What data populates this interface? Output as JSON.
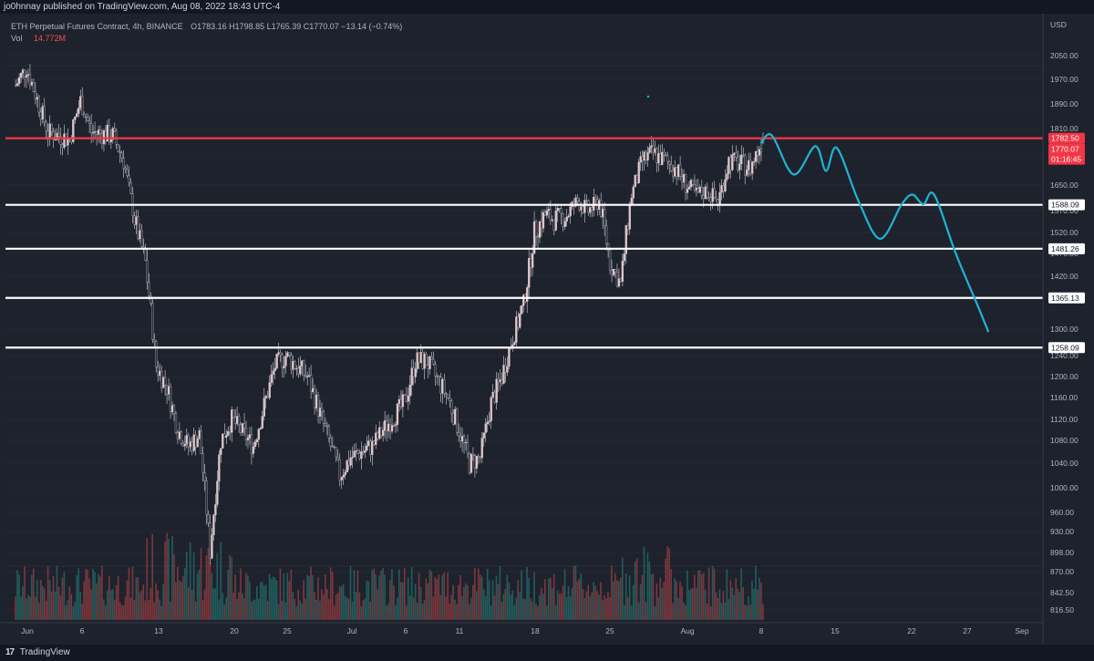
{
  "header": {
    "publisher_line": "jo0hnnay published on TradingView.com, Aug 08, 2022 18:43 UTC-4"
  },
  "legend": {
    "symbol": "ETH Perpetual Futures Contract, 4h, BINANCE",
    "ohlc": "O1783.16 H1798.85 L1765.39 C1770.07 −13.14 (−0.74%)",
    "vol_label": "Vol",
    "vol_value": "14.772M"
  },
  "footer": {
    "brand": "TradingView"
  },
  "colors": {
    "background": "#1e222d",
    "grid": "#2a2e39",
    "up_candle": "#e8c4c4",
    "down_candle": "#2a2e39",
    "wick": "#d1d4dc",
    "vol_up": "#26a69a",
    "vol_down": "#ef5350",
    "resistance_line": "#f23645",
    "support_lines": "#ffffff",
    "projection": "#1fb4d2"
  },
  "chart_data": {
    "type": "candlestick",
    "symbol": "ETH Perpetual Futures Contract",
    "interval": "4h",
    "exchange": "BINANCE",
    "y_axis_unit": "USD",
    "y_ticks": [
      2050,
      1970,
      1890,
      1810,
      1730,
      1650,
      1570,
      1520,
      1470,
      1420,
      1360,
      1300,
      1240,
      1200,
      1160,
      1120,
      1080,
      1040,
      1000,
      960,
      930,
      898,
      870,
      842.5,
      816.5
    ],
    "y_tick_labels": [
      "2050.00",
      "1970.00",
      "1890.00",
      "1810.00",
      "1730.00",
      "1650.00",
      "1570.00",
      "1520.00",
      "1470.00",
      "1420.00",
      "1360.00",
      "1300.00",
      "1240.00",
      "1200.00",
      "1160.00",
      "1120.00",
      "1080.00",
      "1040.00",
      "1000.00",
      "960.00",
      "930.00",
      "898.00",
      "870.00",
      "842.50",
      "816.50"
    ],
    "x_ticks": [
      "Jun",
      "6",
      "13",
      "20",
      "25",
      "Jul",
      "6",
      "11",
      "18",
      "25",
      "Aug",
      "8",
      "15",
      "22",
      "27",
      "Sep"
    ],
    "horizontal_levels": [
      {
        "price": 1782.5,
        "label": "1782.50",
        "color": "#f23645",
        "kind": "resistance"
      },
      {
        "price": 1588.09,
        "label": "1588.09",
        "color": "#ffffff",
        "kind": "support"
      },
      {
        "price": 1481.26,
        "label": "1481.26",
        "color": "#ffffff",
        "kind": "support"
      },
      {
        "price": 1365.13,
        "label": "1365.13",
        "color": "#ffffff",
        "kind": "support"
      },
      {
        "price": 1258.09,
        "label": "1258.09",
        "color": "#ffffff",
        "kind": "support"
      }
    ],
    "last_price": {
      "price": 1770.07,
      "label": "1770.07",
      "countdown": "01:16:45"
    },
    "price_anchors": [
      {
        "date": "May 31",
        "price": 1950
      },
      {
        "date": "Jun 1",
        "price": 2010
      },
      {
        "date": "Jun 3",
        "price": 1800
      },
      {
        "date": "Jun 5",
        "price": 1780
      },
      {
        "date": "Jun 6",
        "price": 1900
      },
      {
        "date": "Jun 7",
        "price": 1800
      },
      {
        "date": "Jun 9",
        "price": 1790
      },
      {
        "date": "Jun 10",
        "price": 1720
      },
      {
        "date": "Jun 11",
        "price": 1550
      },
      {
        "date": "Jun 12",
        "price": 1450
      },
      {
        "date": "Jun 13",
        "price": 1220
      },
      {
        "date": "Jun 14",
        "price": 1180
      },
      {
        "date": "Jun 15",
        "price": 1100
      },
      {
        "date": "Jun 16",
        "price": 1070
      },
      {
        "date": "Jun 17",
        "price": 1090
      },
      {
        "date": "Jun 18",
        "price": 900
      },
      {
        "date": "Jun 19",
        "price": 1080
      },
      {
        "date": "Jun 20",
        "price": 1120
      },
      {
        "date": "Jun 22",
        "price": 1070
      },
      {
        "date": "Jun 24",
        "price": 1220
      },
      {
        "date": "Jun 25",
        "price": 1240
      },
      {
        "date": "Jun 27",
        "price": 1200
      },
      {
        "date": "Jun 28",
        "price": 1140
      },
      {
        "date": "Jun 30",
        "price": 1020
      },
      {
        "date": "Jul 1",
        "price": 1050
      },
      {
        "date": "Jul 3",
        "price": 1070
      },
      {
        "date": "Jul 4",
        "price": 1100
      },
      {
        "date": "Jul 6",
        "price": 1150
      },
      {
        "date": "Jul 7",
        "price": 1230
      },
      {
        "date": "Jul 8",
        "price": 1230
      },
      {
        "date": "Jul 10",
        "price": 1160
      },
      {
        "date": "Jul 12",
        "price": 1040
      },
      {
        "date": "Jul 13",
        "price": 1050
      },
      {
        "date": "Jul 14",
        "price": 1150
      },
      {
        "date": "Jul 15",
        "price": 1200
      },
      {
        "date": "Jul 16",
        "price": 1280
      },
      {
        "date": "Jul 17",
        "price": 1350
      },
      {
        "date": "Jul 18",
        "price": 1520
      },
      {
        "date": "Jul 19",
        "price": 1560
      },
      {
        "date": "Jul 20",
        "price": 1550
      },
      {
        "date": "Jul 21",
        "price": 1560
      },
      {
        "date": "Jul 22",
        "price": 1600
      },
      {
        "date": "Jul 23",
        "price": 1570
      },
      {
        "date": "Jul 24",
        "price": 1600
      },
      {
        "date": "Jul 25",
        "price": 1450
      },
      {
        "date": "Jul 26",
        "price": 1400
      },
      {
        "date": "Jul 27",
        "price": 1620
      },
      {
        "date": "Jul 28",
        "price": 1720
      },
      {
        "date": "Jul 29",
        "price": 1740
      },
      {
        "date": "Jul 30",
        "price": 1720
      },
      {
        "date": "Jul 31",
        "price": 1700
      },
      {
        "date": "Aug 1",
        "price": 1650
      },
      {
        "date": "Aug 2",
        "price": 1620
      },
      {
        "date": "Aug 3",
        "price": 1630
      },
      {
        "date": "Aug 4",
        "price": 1600
      },
      {
        "date": "Aug 5",
        "price": 1720
      },
      {
        "date": "Aug 6",
        "price": 1710
      },
      {
        "date": "Aug 7",
        "price": 1700
      },
      {
        "date": "Aug 8",
        "price": 1770
      }
    ],
    "projection_path": [
      {
        "date": "Aug 8",
        "price": 1770
      },
      {
        "date": "Aug 9",
        "price": 1790
      },
      {
        "date": "Aug 11",
        "price": 1680
      },
      {
        "date": "Aug 13",
        "price": 1760
      },
      {
        "date": "Aug 14",
        "price": 1690
      },
      {
        "date": "Aug 15",
        "price": 1755
      },
      {
        "date": "Aug 17",
        "price": 1600
      },
      {
        "date": "Aug 19",
        "price": 1505
      },
      {
        "date": "Aug 21",
        "price": 1590
      },
      {
        "date": "Aug 22",
        "price": 1620
      },
      {
        "date": "Aug 23",
        "price": 1590
      },
      {
        "date": "Aug 24",
        "price": 1620
      },
      {
        "date": "Aug 26",
        "price": 1470
      },
      {
        "date": "Aug 28",
        "price": 1350
      },
      {
        "date": "Aug 29",
        "price": 1295
      }
    ]
  }
}
